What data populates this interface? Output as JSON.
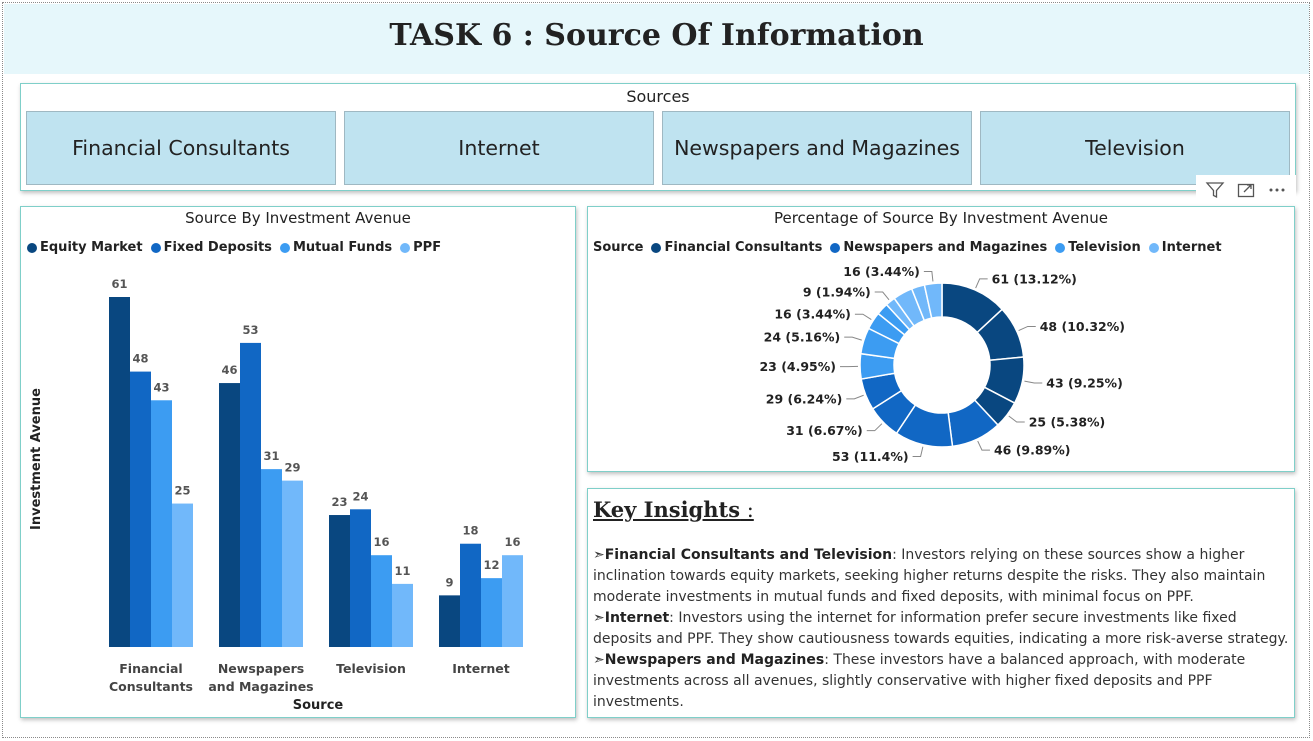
{
  "page": {
    "title": "TASK 6 : Source Of Information"
  },
  "slicer": {
    "title": "Sources",
    "options": [
      "Financial Consultants",
      "Internet",
      "Newspapers and Magazines",
      "Television"
    ]
  },
  "visual_header_icons": [
    "filter-icon",
    "focus-mode-icon",
    "more-options-icon"
  ],
  "bar_chart": {
    "title": "Source By Investment Avenue",
    "legend": [
      "Equity Market",
      "Fixed Deposits",
      "Mutual Funds",
      "PPF"
    ]
  },
  "donut_chart": {
    "title": "Percentage of Source By Investment Avenue",
    "legend_title": "Source",
    "legend": [
      "Financial Consultants",
      "Newspapers and Magazines",
      "Television",
      "Internet"
    ]
  },
  "insights": {
    "title": "Key Insights",
    "colon": " :",
    "bullet": "➣",
    "items": [
      {
        "heading": "Financial Consultants and Television",
        "text": ": Investors relying on these sources show a higher inclination towards equity markets, seeking higher returns despite the risks. They also maintain moderate investments in mutual funds and fixed deposits, with minimal focus on PPF."
      },
      {
        "heading": "Internet",
        "text": ": Investors using the internet for information prefer secure investments like fixed deposits and PPF. They show cautiousness towards equities, indicating a more risk-averse strategy."
      },
      {
        "heading": "Newspapers and Magazines",
        "text": ": These investors have a balanced approach, with moderate investments across all avenues, slightly conservative with higher fixed deposits and PPF investments."
      }
    ]
  },
  "colors": {
    "equity_market": "#094780",
    "fixed_deposits": "#1167c4",
    "mutual_funds": "#3c9cf2",
    "ppf": "#71b8fa",
    "slicer_button": "#bfe3f0",
    "title_background": "#e6f7fb",
    "card_border": "#7fcfc9"
  },
  "chart_data": [
    {
      "type": "bar",
      "title": "Source By Investment Avenue",
      "xlabel": "Source",
      "ylabel": "Investment Avenue",
      "categories": [
        [
          "Financial",
          "Consultants"
        ],
        [
          "Newspapers",
          "and Magazines"
        ],
        [
          "Television"
        ],
        [
          "Internet"
        ]
      ],
      "series": [
        {
          "name": "Equity Market",
          "values": [
            61,
            46,
            23,
            9
          ]
        },
        {
          "name": "Fixed Deposits",
          "values": [
            48,
            53,
            24,
            18
          ]
        },
        {
          "name": "Mutual Funds",
          "values": [
            43,
            31,
            16,
            12
          ]
        },
        {
          "name": "PPF",
          "values": [
            25,
            29,
            11,
            16
          ]
        }
      ],
      "ylim": [
        0,
        61
      ],
      "legend_position": "top-left",
      "grid": false
    },
    {
      "type": "pie",
      "subtype": "donut",
      "title": "Percentage of Source By Investment Avenue",
      "legend_title": "Source",
      "legend_position": "top",
      "slices": [
        {
          "source": "Financial Consultants",
          "value": 61,
          "label": "61 (13.12%)"
        },
        {
          "source": "Financial Consultants",
          "value": 48,
          "label": "48 (10.32%)"
        },
        {
          "source": "Financial Consultants",
          "value": 43,
          "label": "43 (9.25%)"
        },
        {
          "source": "Financial Consultants",
          "value": 25,
          "label": "25 (5.38%)"
        },
        {
          "source": "Newspapers and Magazines",
          "value": 46,
          "label": "46 (9.89%)"
        },
        {
          "source": "Newspapers and Magazines",
          "value": 53,
          "label": "53 (11.4%)"
        },
        {
          "source": "Newspapers and Magazines",
          "value": 31,
          "label": "31 (6.67%)"
        },
        {
          "source": "Newspapers and Magazines",
          "value": 29,
          "label": "29 (6.24%)"
        },
        {
          "source": "Television",
          "value": 23,
          "label": "23 (4.95%)"
        },
        {
          "source": "Television",
          "value": 24,
          "label": "24 (5.16%)"
        },
        {
          "source": "Television",
          "value": 16,
          "label": "16 (3.44%)"
        },
        {
          "source": "Television",
          "value": 11,
          "label": ""
        },
        {
          "source": "Internet",
          "value": 9,
          "label": "9 (1.94%)"
        },
        {
          "source": "Internet",
          "value": 18,
          "label": ""
        },
        {
          "source": "Internet",
          "value": 12,
          "label": ""
        },
        {
          "source": "Internet",
          "value": 16,
          "label": "16 (3.44%)"
        }
      ]
    }
  ]
}
